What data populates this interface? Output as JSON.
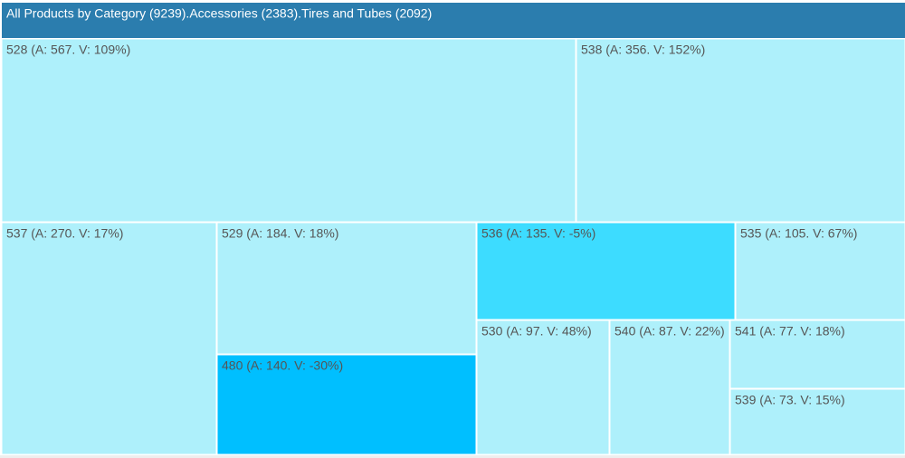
{
  "chart_data": {
    "type": "treemap",
    "title": "All Products by Category (9239).Accessories (2383).Tires and Tubes (2092)",
    "categories": [
      "528 (A: 567. V: 109%)",
      "538 (A: 356. V: 152%)",
      "537 (A: 270. V: 17%)",
      "529 (A: 184. V: 18%)",
      "480 (A: 140. V: -30%)",
      "536 (A: 135. V: -5%)",
      "535 (A: 105. V: 67%)",
      "530 (A: 97. V: 48%)",
      "540 (A: 87. V: 22%)",
      "541 (A: 77. V: 18%)",
      "539 (A: 73. V: 15%)"
    ],
    "values": [
      567,
      356,
      270,
      184,
      140,
      135,
      105,
      97,
      87,
      77,
      73
    ],
    "colors": [
      "#aef0fb",
      "#aef0fb",
      "#aef0fb",
      "#aef0fb",
      "#00bfff",
      "#3ddcff",
      "#aef0fb",
      "#aef0fb",
      "#aef0fb",
      "#aef0fb",
      "#aef0fb"
    ],
    "title_color": "#2b7dae"
  }
}
